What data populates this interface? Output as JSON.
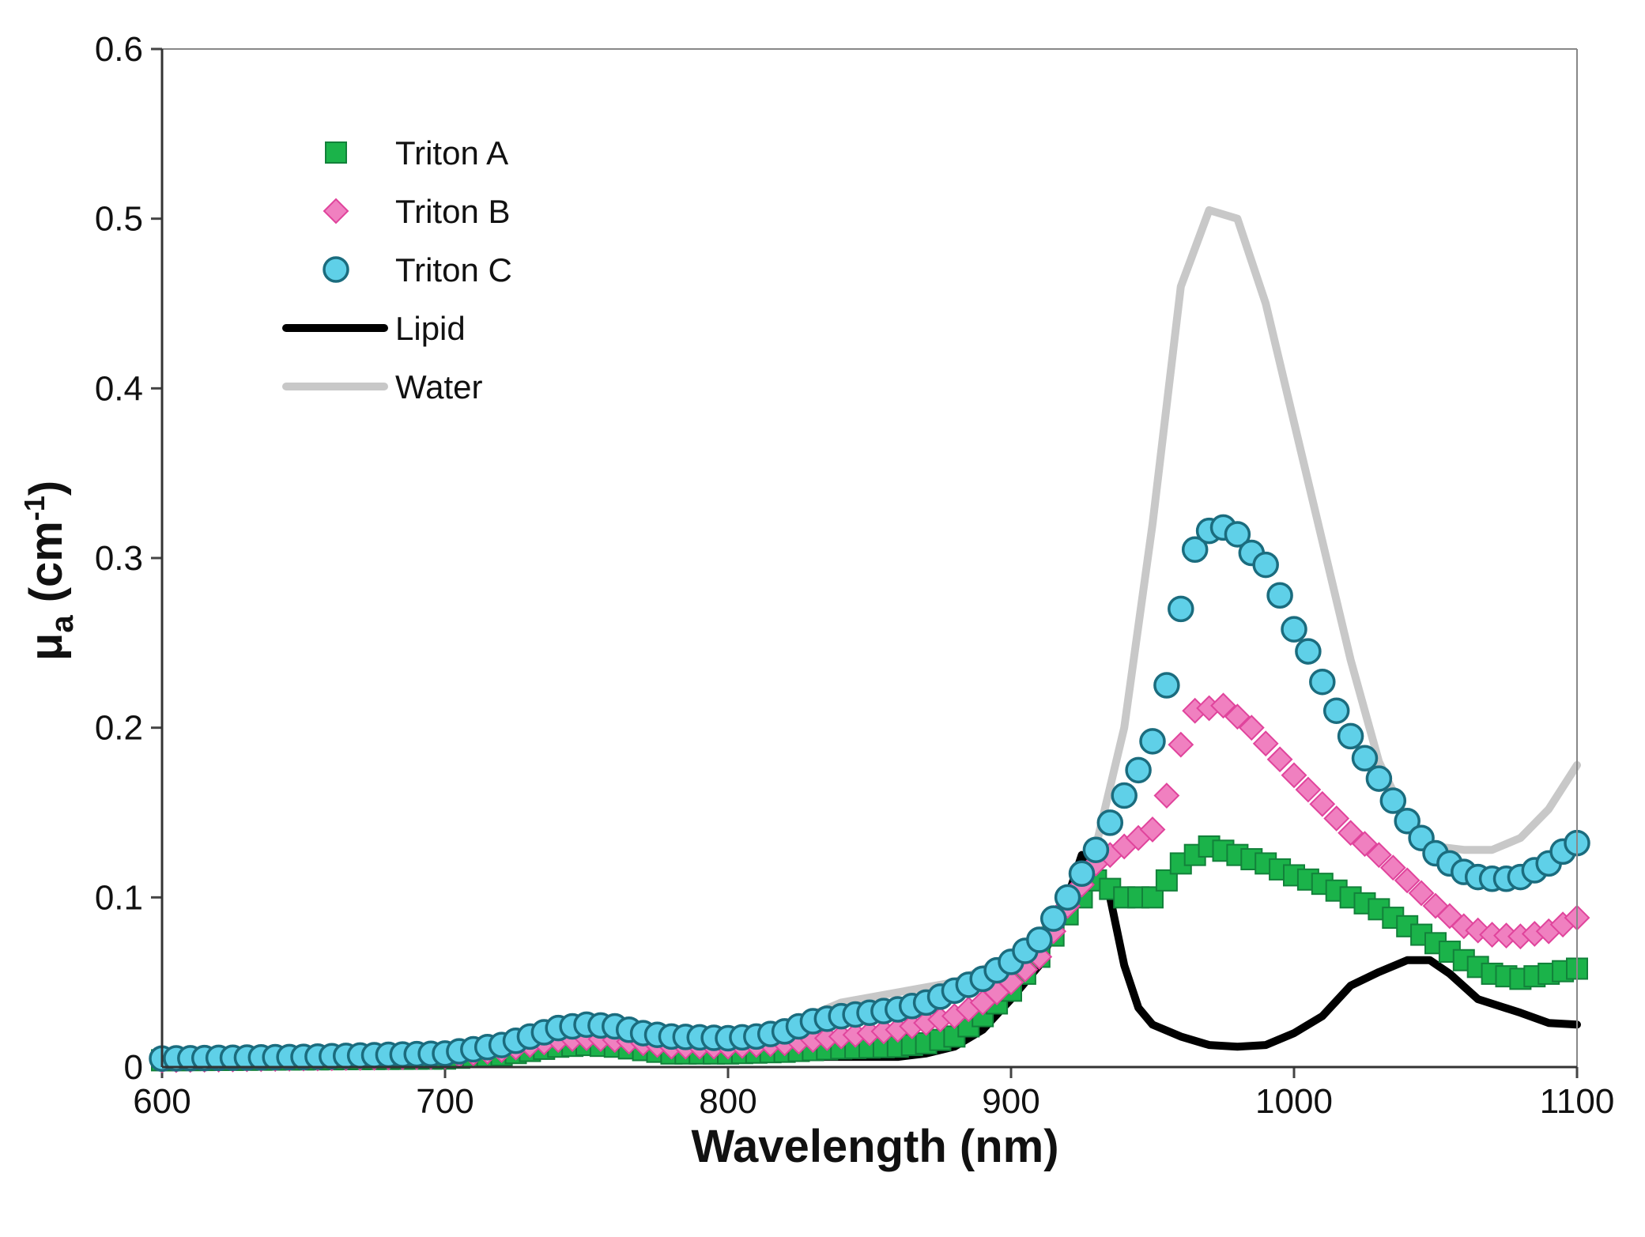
{
  "chart_data": {
    "type": "scatter",
    "title": "",
    "xlabel": "Wavelength (nm)",
    "ylabel": {
      "main": "μ",
      "sub": "a",
      "unit_open": " (cm",
      "unit_sup": "-1",
      "unit_close": ")"
    },
    "xlim": [
      600,
      1100
    ],
    "ylim": [
      0,
      0.6
    ],
    "x_ticks": [
      "600",
      "700",
      "800",
      "900",
      "1000",
      "1100"
    ],
    "y_ticks": [
      "0",
      "0.1",
      "0.2",
      "0.3",
      "0.4",
      "0.5",
      "0.6"
    ],
    "grid": false,
    "legend_position": "top-left",
    "series": [
      {
        "name": "Water",
        "kind": "line",
        "color": "#c8c8c8",
        "points": [
          [
            600,
            0.005
          ],
          [
            650,
            0.006
          ],
          [
            700,
            0.008
          ],
          [
            720,
            0.014
          ],
          [
            740,
            0.026
          ],
          [
            760,
            0.027
          ],
          [
            780,
            0.022
          ],
          [
            800,
            0.02
          ],
          [
            820,
            0.024
          ],
          [
            840,
            0.038
          ],
          [
            860,
            0.044
          ],
          [
            880,
            0.05
          ],
          [
            900,
            0.065
          ],
          [
            910,
            0.078
          ],
          [
            920,
            0.098
          ],
          [
            930,
            0.13
          ],
          [
            940,
            0.2
          ],
          [
            950,
            0.32
          ],
          [
            960,
            0.46
          ],
          [
            970,
            0.505
          ],
          [
            980,
            0.5
          ],
          [
            990,
            0.45
          ],
          [
            1000,
            0.38
          ],
          [
            1010,
            0.31
          ],
          [
            1020,
            0.24
          ],
          [
            1030,
            0.18
          ],
          [
            1040,
            0.145
          ],
          [
            1050,
            0.13
          ],
          [
            1060,
            0.128
          ],
          [
            1070,
            0.128
          ],
          [
            1080,
            0.135
          ],
          [
            1090,
            0.152
          ],
          [
            1100,
            0.178
          ]
        ]
      },
      {
        "name": "Lipid",
        "kind": "line",
        "color": "#000000",
        "points": [
          [
            600,
            0.002
          ],
          [
            700,
            0.003
          ],
          [
            720,
            0.005
          ],
          [
            740,
            0.01
          ],
          [
            760,
            0.011
          ],
          [
            780,
            0.008
          ],
          [
            800,
            0.006
          ],
          [
            820,
            0.006
          ],
          [
            840,
            0.006
          ],
          [
            860,
            0.006
          ],
          [
            870,
            0.008
          ],
          [
            880,
            0.012
          ],
          [
            890,
            0.022
          ],
          [
            900,
            0.04
          ],
          [
            910,
            0.06
          ],
          [
            920,
            0.1
          ],
          [
            925,
            0.125
          ],
          [
            930,
            0.12
          ],
          [
            935,
            0.1
          ],
          [
            940,
            0.06
          ],
          [
            945,
            0.035
          ],
          [
            950,
            0.025
          ],
          [
            960,
            0.018
          ],
          [
            970,
            0.013
          ],
          [
            980,
            0.012
          ],
          [
            990,
            0.013
          ],
          [
            1000,
            0.02
          ],
          [
            1010,
            0.03
          ],
          [
            1020,
            0.048
          ],
          [
            1030,
            0.056
          ],
          [
            1040,
            0.063
          ],
          [
            1048,
            0.063
          ],
          [
            1055,
            0.055
          ],
          [
            1065,
            0.04
          ],
          [
            1080,
            0.032
          ],
          [
            1090,
            0.026
          ],
          [
            1100,
            0.025
          ]
        ]
      },
      {
        "name": "Triton A",
        "kind": "marker",
        "marker": "square",
        "color": "#1bb34a",
        "stroke": "#12813a",
        "x_start": 600,
        "x_end": 1100,
        "x_step": 5,
        "points": [
          [
            600,
            0.004
          ],
          [
            700,
            0.005
          ],
          [
            720,
            0.007
          ],
          [
            740,
            0.012
          ],
          [
            750,
            0.013
          ],
          [
            760,
            0.012
          ],
          [
            780,
            0.008
          ],
          [
            800,
            0.008
          ],
          [
            820,
            0.009
          ],
          [
            840,
            0.011
          ],
          [
            860,
            0.012
          ],
          [
            870,
            0.014
          ],
          [
            880,
            0.018
          ],
          [
            890,
            0.03
          ],
          [
            900,
            0.045
          ],
          [
            910,
            0.065
          ],
          [
            920,
            0.09
          ],
          [
            930,
            0.11
          ],
          [
            940,
            0.1
          ],
          [
            950,
            0.1
          ],
          [
            960,
            0.12
          ],
          [
            970,
            0.13
          ],
          [
            980,
            0.125
          ],
          [
            990,
            0.12
          ],
          [
            1000,
            0.113
          ],
          [
            1010,
            0.108
          ],
          [
            1020,
            0.1
          ],
          [
            1030,
            0.093
          ],
          [
            1040,
            0.083
          ],
          [
            1050,
            0.073
          ],
          [
            1060,
            0.063
          ],
          [
            1070,
            0.055
          ],
          [
            1080,
            0.052
          ],
          [
            1090,
            0.055
          ],
          [
            1100,
            0.058
          ]
        ]
      },
      {
        "name": "Triton B",
        "kind": "marker",
        "marker": "diamond",
        "color": "#f080c0",
        "stroke": "#e0449c",
        "x_start": 600,
        "x_end": 1100,
        "x_step": 5,
        "points": [
          [
            600,
            0.004
          ],
          [
            700,
            0.006
          ],
          [
            720,
            0.01
          ],
          [
            740,
            0.016
          ],
          [
            750,
            0.017
          ],
          [
            760,
            0.016
          ],
          [
            780,
            0.012
          ],
          [
            800,
            0.012
          ],
          [
            820,
            0.014
          ],
          [
            840,
            0.018
          ],
          [
            860,
            0.022
          ],
          [
            880,
            0.03
          ],
          [
            890,
            0.038
          ],
          [
            900,
            0.05
          ],
          [
            910,
            0.065
          ],
          [
            920,
            0.095
          ],
          [
            930,
            0.12
          ],
          [
            940,
            0.13
          ],
          [
            950,
            0.14
          ],
          [
            955,
            0.16
          ],
          [
            960,
            0.19
          ],
          [
            965,
            0.21
          ],
          [
            975,
            0.213
          ],
          [
            985,
            0.2
          ],
          [
            1000,
            0.172
          ],
          [
            1010,
            0.155
          ],
          [
            1020,
            0.138
          ],
          [
            1030,
            0.125
          ],
          [
            1040,
            0.11
          ],
          [
            1050,
            0.095
          ],
          [
            1060,
            0.083
          ],
          [
            1070,
            0.078
          ],
          [
            1080,
            0.077
          ],
          [
            1090,
            0.08
          ],
          [
            1100,
            0.088
          ]
        ]
      },
      {
        "name": "Triton C",
        "kind": "marker",
        "marker": "circle",
        "color": "#5fd0e8",
        "stroke": "#1b6c7e",
        "x_start": 600,
        "x_end": 1100,
        "x_step": 5,
        "points": [
          [
            600,
            0.005
          ],
          [
            650,
            0.006
          ],
          [
            700,
            0.008
          ],
          [
            720,
            0.013
          ],
          [
            730,
            0.018
          ],
          [
            740,
            0.023
          ],
          [
            750,
            0.025
          ],
          [
            760,
            0.024
          ],
          [
            770,
            0.02
          ],
          [
            780,
            0.018
          ],
          [
            800,
            0.017
          ],
          [
            810,
            0.018
          ],
          [
            820,
            0.021
          ],
          [
            830,
            0.027
          ],
          [
            840,
            0.03
          ],
          [
            850,
            0.032
          ],
          [
            860,
            0.034
          ],
          [
            870,
            0.038
          ],
          [
            880,
            0.045
          ],
          [
            890,
            0.052
          ],
          [
            900,
            0.062
          ],
          [
            910,
            0.075
          ],
          [
            920,
            0.1
          ],
          [
            930,
            0.128
          ],
          [
            940,
            0.16
          ],
          [
            945,
            0.175
          ],
          [
            950,
            0.192
          ],
          [
            955,
            0.225
          ],
          [
            960,
            0.27
          ],
          [
            965,
            0.305
          ],
          [
            970,
            0.316
          ],
          [
            975,
            0.318
          ],
          [
            980,
            0.314
          ],
          [
            985,
            0.303
          ],
          [
            990,
            0.296
          ],
          [
            995,
            0.278
          ],
          [
            1000,
            0.258
          ],
          [
            1005,
            0.245
          ],
          [
            1010,
            0.227
          ],
          [
            1015,
            0.21
          ],
          [
            1020,
            0.195
          ],
          [
            1025,
            0.182
          ],
          [
            1030,
            0.17
          ],
          [
            1035,
            0.157
          ],
          [
            1040,
            0.145
          ],
          [
            1045,
            0.135
          ],
          [
            1050,
            0.126
          ],
          [
            1055,
            0.12
          ],
          [
            1060,
            0.115
          ],
          [
            1065,
            0.112
          ],
          [
            1070,
            0.111
          ],
          [
            1075,
            0.111
          ],
          [
            1080,
            0.112
          ],
          [
            1085,
            0.116
          ],
          [
            1090,
            0.12
          ],
          [
            1095,
            0.127
          ],
          [
            1100,
            0.132
          ]
        ]
      }
    ],
    "legend_order": [
      "Triton A",
      "Triton B",
      "Triton C",
      "Lipid",
      "Water"
    ]
  }
}
